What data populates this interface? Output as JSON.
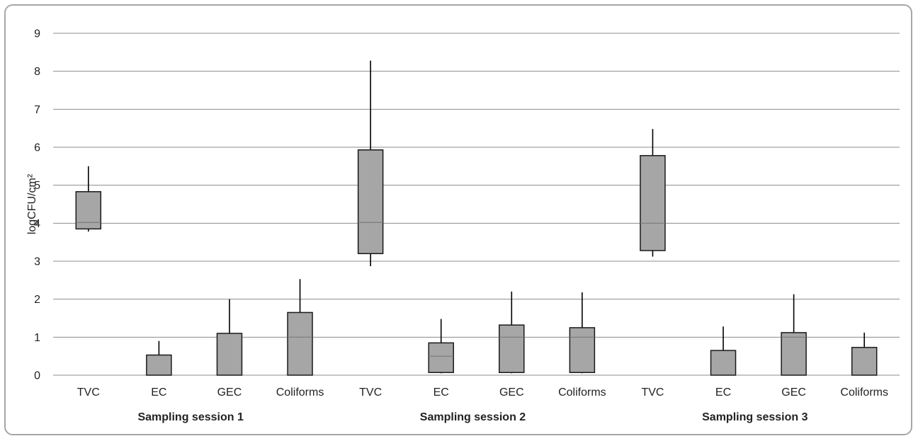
{
  "chart_data": {
    "type": "box",
    "ylabel": "logCFU/cm²",
    "ylim": [
      0,
      9
    ],
    "yticks": [
      "0",
      "1",
      "2",
      "3",
      "4",
      "5",
      "6",
      "7",
      "8",
      "9"
    ],
    "grid": true,
    "groups": [
      {
        "label": "Sampling session 1",
        "items": [
          {
            "name": "TVC",
            "low": 3.78,
            "q1": 3.85,
            "median": 4.02,
            "q3": 4.83,
            "high": 5.5
          },
          {
            "name": "EC",
            "low": 0,
            "q1": 0,
            "median": 0,
            "q3": 0.53,
            "high": 0.9
          },
          {
            "name": "GEC",
            "low": 0,
            "q1": 0,
            "median": 0,
            "q3": 1.1,
            "high": 2.0
          },
          {
            "name": "Coliforms",
            "low": 0,
            "q1": 0,
            "median": 1.0,
            "q3": 1.65,
            "high": 2.53
          }
        ]
      },
      {
        "label": "Sampling session 2",
        "items": [
          {
            "name": "TVC",
            "low": 2.87,
            "q1": 3.2,
            "median": 4.02,
            "q3": 5.93,
            "high": 8.28
          },
          {
            "name": "EC",
            "low": 0.05,
            "q1": 0.07,
            "median": 0.5,
            "q3": 0.85,
            "high": 1.48
          },
          {
            "name": "GEC",
            "low": 0.05,
            "q1": 0.07,
            "median": 1.0,
            "q3": 1.32,
            "high": 2.2
          },
          {
            "name": "Coliforms",
            "low": 0.05,
            "q1": 0.07,
            "median": 1.0,
            "q3": 1.25,
            "high": 2.18
          }
        ]
      },
      {
        "label": "Sampling session 3",
        "items": [
          {
            "name": "TVC",
            "low": 3.12,
            "q1": 3.28,
            "median": 4.0,
            "q3": 5.78,
            "high": 6.48
          },
          {
            "name": "EC",
            "low": 0,
            "q1": 0,
            "median": 0,
            "q3": 0.65,
            "high": 1.28
          },
          {
            "name": "GEC",
            "low": 0,
            "q1": 0,
            "median": 1.0,
            "q3": 1.12,
            "high": 2.13
          },
          {
            "name": "Coliforms",
            "low": 0,
            "q1": 0,
            "median": 0,
            "q3": 0.73,
            "high": 1.12
          }
        ]
      }
    ]
  }
}
